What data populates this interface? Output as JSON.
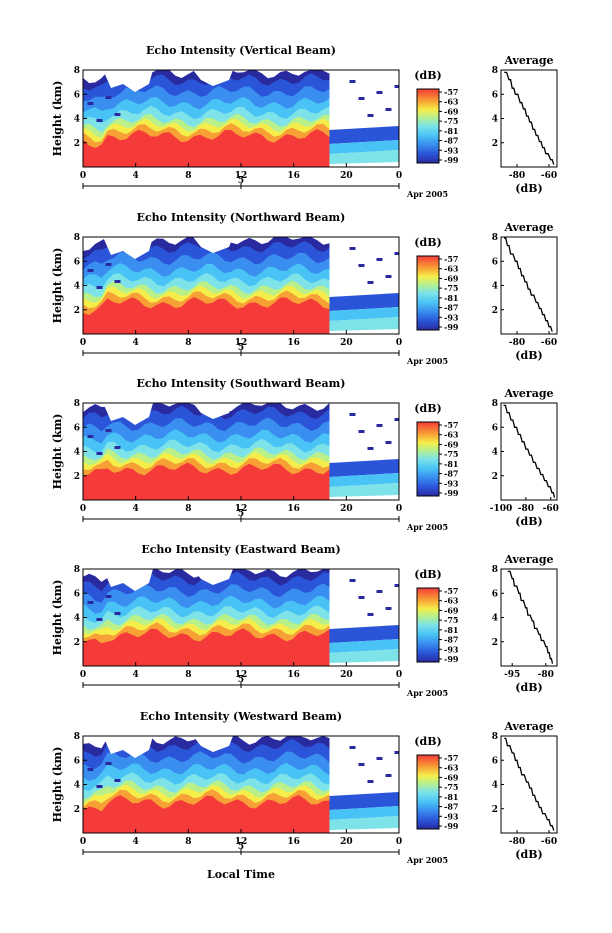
{
  "chart_data": [
    {
      "type": "heatmap",
      "title": "Echo Intensity (Vertical Beam)",
      "ylabel": "Height (km)",
      "ylim": [
        0,
        8
      ],
      "yticks": [
        "8",
        "6",
        "4",
        "2"
      ],
      "xlim": [
        0,
        24
      ],
      "xticks": [
        "0",
        "4",
        "8",
        "12",
        "16",
        "20",
        "0"
      ],
      "date_tick": "5",
      "date_label": "Apr 2005",
      "colorbar": {
        "unit": "(dB)",
        "ticks": [
          "-57",
          "-63",
          "-69",
          "-75",
          "-81",
          "-87",
          "-93",
          "-99"
        ]
      },
      "avg_profile": {
        "title": "Average",
        "xlabel": "(dB)",
        "xticks": [
          "-80",
          "-60"
        ],
        "xlim": [
          -90,
          -55
        ],
        "ylim": [
          0,
          8
        ],
        "yticks": [
          "8",
          "6",
          "4",
          "2"
        ],
        "x": [
          -88,
          -85,
          -83,
          -81,
          -78,
          -76,
          -74,
          -72,
          -70,
          -68,
          -66,
          -64,
          -62,
          -59,
          -57
        ],
        "y": [
          7.8,
          7.2,
          6.5,
          6.0,
          5.3,
          4.8,
          4.2,
          3.7,
          3.1,
          2.6,
          2.1,
          1.6,
          1.1,
          0.6,
          0.2
        ]
      }
    },
    {
      "type": "heatmap",
      "title": "Echo Intensity (Northward Beam)",
      "ylabel": "Height (km)",
      "ylim": [
        0,
        8
      ],
      "yticks": [
        "8",
        "6",
        "4",
        "2"
      ],
      "xlim": [
        0,
        24
      ],
      "xticks": [
        "0",
        "4",
        "8",
        "12",
        "16",
        "20",
        "0"
      ],
      "date_tick": "5",
      "date_label": "Apr 2005",
      "colorbar": {
        "unit": "(dB)",
        "ticks": [
          "-57",
          "-63",
          "-69",
          "-75",
          "-81",
          "-87",
          "-93",
          "-99"
        ]
      },
      "avg_profile": {
        "title": "Average",
        "xlabel": "(dB)",
        "xticks": [
          "-80",
          "-60"
        ],
        "xlim": [
          -90,
          -55
        ],
        "ylim": [
          0,
          8
        ],
        "yticks": [
          "8",
          "6",
          "4",
          "2"
        ],
        "x": [
          -88,
          -86,
          -84,
          -81,
          -79,
          -77,
          -75,
          -73,
          -71,
          -68,
          -66,
          -64,
          -62,
          -60,
          -58
        ],
        "y": [
          7.9,
          7.3,
          6.6,
          6.0,
          5.4,
          4.8,
          4.3,
          3.7,
          3.2,
          2.6,
          2.1,
          1.6,
          1.1,
          0.6,
          0.2
        ]
      }
    },
    {
      "type": "heatmap",
      "title": "Echo Intensity (Southward Beam)",
      "ylabel": "Height (km)",
      "ylim": [
        0,
        8
      ],
      "yticks": [
        "8",
        "6",
        "4",
        "2"
      ],
      "xlim": [
        0,
        24
      ],
      "xticks": [
        "0",
        "4",
        "8",
        "12",
        "16",
        "20",
        "0"
      ],
      "date_tick": "5",
      "date_label": "Apr 2005",
      "colorbar": {
        "unit": "(dB)",
        "ticks": [
          "-57",
          "-63",
          "-69",
          "-75",
          "-81",
          "-87",
          "-93",
          "-99"
        ]
      },
      "avg_profile": {
        "title": "Average",
        "xlabel": "(dB)",
        "xticks": [
          "-100",
          "-80",
          "-60"
        ],
        "xlim": [
          -100,
          -55
        ],
        "ylim": [
          0,
          8
        ],
        "yticks": [
          "8",
          "6",
          "4",
          "2"
        ],
        "x": [
          -98,
          -95,
          -92,
          -89,
          -86,
          -83,
          -80,
          -77,
          -74,
          -71,
          -68,
          -65,
          -62,
          -59,
          -57
        ],
        "y": [
          7.8,
          7.2,
          6.6,
          6.0,
          5.4,
          4.8,
          4.2,
          3.7,
          3.1,
          2.6,
          2.1,
          1.6,
          1.1,
          0.6,
          0.2
        ]
      }
    },
    {
      "type": "heatmap",
      "title": "Echo Intensity (Eastward Beam)",
      "ylabel": "Height (km)",
      "ylim": [
        0,
        8
      ],
      "yticks": [
        "8",
        "6",
        "4",
        "2"
      ],
      "xlim": [
        0,
        24
      ],
      "xticks": [
        "0",
        "4",
        "8",
        "12",
        "16",
        "20",
        "0"
      ],
      "date_tick": "5",
      "date_label": "Apr 2005",
      "colorbar": {
        "unit": "(dB)",
        "ticks": [
          "-57",
          "-63",
          "-69",
          "-75",
          "-81",
          "-87",
          "-93",
          "-99"
        ]
      },
      "avg_profile": {
        "title": "Average",
        "xlabel": "(dB)",
        "xticks": [
          "-95",
          "-80"
        ],
        "xlim": [
          -100,
          -75
        ],
        "ylim": [
          0,
          8
        ],
        "yticks": [
          "8",
          "6",
          "4",
          "2"
        ],
        "x": [
          -97,
          -95,
          -94,
          -92,
          -91,
          -89,
          -88,
          -86,
          -85,
          -83,
          -82,
          -80,
          -79,
          -78,
          -77
        ],
        "y": [
          7.8,
          7.2,
          6.6,
          6.0,
          5.4,
          4.8,
          4.2,
          3.7,
          3.1,
          2.6,
          2.1,
          1.6,
          1.1,
          0.6,
          0.2
        ]
      }
    },
    {
      "type": "heatmap",
      "title": "Echo Intensity (Westward Beam)",
      "ylabel": "Height (km)",
      "ylim": [
        0,
        8
      ],
      "yticks": [
        "8",
        "6",
        "4",
        "2"
      ],
      "xlim": [
        0,
        24
      ],
      "xticks": [
        "0",
        "4",
        "8",
        "12",
        "16",
        "20",
        "0"
      ],
      "date_tick": "5",
      "date_label": "Apr 2005",
      "colorbar": {
        "unit": "(dB)",
        "ticks": [
          "-57",
          "-63",
          "-69",
          "-75",
          "-81",
          "-87",
          "-93",
          "-99"
        ]
      },
      "avg_profile": {
        "title": "Average",
        "xlabel": "(dB)",
        "xticks": [
          "-80",
          "-60"
        ],
        "xlim": [
          -90,
          -55
        ],
        "ylim": [
          0,
          8
        ],
        "yticks": [
          "8",
          "6",
          "4",
          "2"
        ],
        "x": [
          -88,
          -86,
          -83,
          -81,
          -79,
          -77,
          -74,
          -72,
          -70,
          -68,
          -66,
          -64,
          -61,
          -59,
          -57
        ],
        "y": [
          7.8,
          7.2,
          6.6,
          6.0,
          5.4,
          4.8,
          4.2,
          3.7,
          3.1,
          2.6,
          2.1,
          1.6,
          1.1,
          0.6,
          0.2
        ]
      }
    }
  ],
  "bottom_xlabel": "Local Time",
  "colors": {
    "colormap": [
      "#2a2aa0",
      "#2a55d8",
      "#3a8ef0",
      "#49c3f5",
      "#7de3e8",
      "#b9f08a",
      "#f5ee4a",
      "#f7a035",
      "#f04a2c",
      "#f53a3a"
    ]
  }
}
